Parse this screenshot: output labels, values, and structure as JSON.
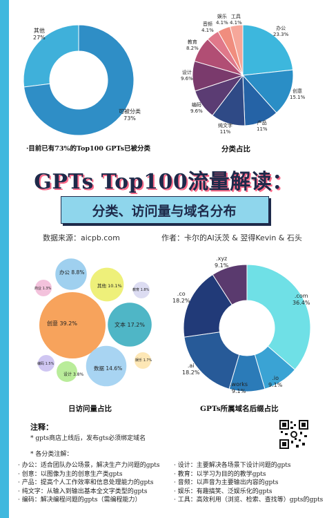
{
  "title": "GPTs Top100流量解读：",
  "subtitle": "分类、访问量与域名分布",
  "source": "数据来源：aicpb.com",
  "authors": "作者：卡尔的AI沃茨 & 翌得Kevin & 石头",
  "colors": {
    "stripe": "#3fb8de",
    "dark": "#1e2a4a",
    "accent": "#8fd6ec",
    "shadow": "#ff6b8a"
  },
  "chart_data": [
    {
      "type": "pie",
      "caption": "·目前已有73%的Top100 GPTs已被分类",
      "slices": [
        {
          "label": "其他",
          "pct": "27%",
          "value": 27,
          "color": "#3fb0da"
        },
        {
          "label": "可被分类",
          "pct": "73%",
          "value": 73,
          "color": "#2f8ec6"
        }
      ]
    },
    {
      "type": "pie",
      "caption": "分类占比",
      "slices": [
        {
          "label": "办公",
          "pct": "23.3%",
          "value": 23.3,
          "color": "#3db7dd"
        },
        {
          "label": "创意",
          "pct": "15.1%",
          "value": 15.1,
          "color": "#2a8ec6"
        },
        {
          "label": "产品",
          "pct": "11%",
          "value": 11,
          "color": "#2563a6"
        },
        {
          "label": "纯文字",
          "pct": "11%",
          "value": 11,
          "color": "#2f4a86"
        },
        {
          "label": "编码",
          "pct": "9.6%",
          "value": 9.6,
          "color": "#5b3c73"
        },
        {
          "label": "设计",
          "pct": "9.6%",
          "value": 9.6,
          "color": "#7a3a6c"
        },
        {
          "label": "教育",
          "pct": "8.2%",
          "value": 8.2,
          "color": "#b14e74"
        },
        {
          "label": "音频",
          "pct": "4.1%",
          "value": 4.1,
          "color": "#e0788a"
        },
        {
          "label": "娱乐",
          "pct": "4.1%",
          "value": 4.1,
          "color": "#f08d7e"
        },
        {
          "label": "工具",
          "pct": "4.1%",
          "value": 4.1,
          "color": "#f6a79a"
        }
      ]
    },
    {
      "type": "bubble",
      "caption": "日访问量占比",
      "bubbles": [
        {
          "label": "创意",
          "pct": "39.2%",
          "value": 39.2,
          "color": "#f7a35c"
        },
        {
          "label": "文本",
          "pct": "17.2%",
          "value": 17.2,
          "color": "#4fb6c6"
        },
        {
          "label": "数据",
          "pct": "14.6%",
          "value": 14.6,
          "color": "#a8d4f2"
        },
        {
          "label": "办公",
          "pct": "8.8%",
          "value": 8.8,
          "color": "#9fd0ef"
        },
        {
          "label": "其他",
          "pct": "10.1%",
          "value": 10.1,
          "color": "#eef07a"
        },
        {
          "label": "设计",
          "pct": "3.8%",
          "value": 3.8,
          "color": "#b9ec9a"
        },
        {
          "label": "教育",
          "pct": "1.8%",
          "value": 1.8,
          "color": "#dcdcf2"
        },
        {
          "label": "娱乐",
          "pct": "1.7%",
          "value": 1.7,
          "color": "#fde7b6"
        },
        {
          "label": "商业",
          "pct": "1.3%",
          "value": 1.3,
          "color": "#f3c2dc"
        },
        {
          "label": "编码",
          "pct": "1.5%",
          "value": 1.5,
          "color": "#cfc6f2"
        }
      ]
    },
    {
      "type": "pie",
      "caption": "GPTs所属域名后缀占比",
      "slices": [
        {
          "label": ".com",
          "pct": "36.4%",
          "value": 36.4,
          "color": "#6fe0e6"
        },
        {
          "label": ".io",
          "pct": "9.1%",
          "value": 9.1,
          "color": "#3aa3d4"
        },
        {
          "label": ".works",
          "pct": "9.1%",
          "value": 9.1,
          "color": "#2b7bb8"
        },
        {
          "label": ".ai",
          "pct": "18.2%",
          "value": 18.2,
          "color": "#275a98"
        },
        {
          "label": ".co",
          "pct": "18.2%",
          "value": 18.2,
          "color": "#213a78"
        },
        {
          "label": ".xyz",
          "pct": "9.1%",
          "value": 9.1,
          "color": "#5a3a6e"
        }
      ]
    }
  ],
  "notes": {
    "heading": "注释：",
    "line1": "* gpts商店上线后，发布gts必须绑定域名",
    "heading2": "* 各分类注解：",
    "left": [
      "· 办公：适合团队办公场景，解决生产力问题的gpts",
      "· 创意：以图像为主的创意生产类gpts",
      "· 产品：提高个人工作效率和信息处理能力的gpts",
      "· 纯文字：从输入到输出基本全文字类型的gpts",
      "· 编码：解决编程问题的gpts（需编程能力）"
    ],
    "right": [
      "· 设计：主要解决各场景下设计问题的gpts",
      "· 教育：以学习为目的的教学gpts",
      "· 音频：以声音为主要输出内容的gpts",
      "· 娱乐：有趣搞笑、泛娱乐化的gpts",
      "· 工具：高效利用（浏览、检索、查找等）gpts的gpts"
    ]
  }
}
